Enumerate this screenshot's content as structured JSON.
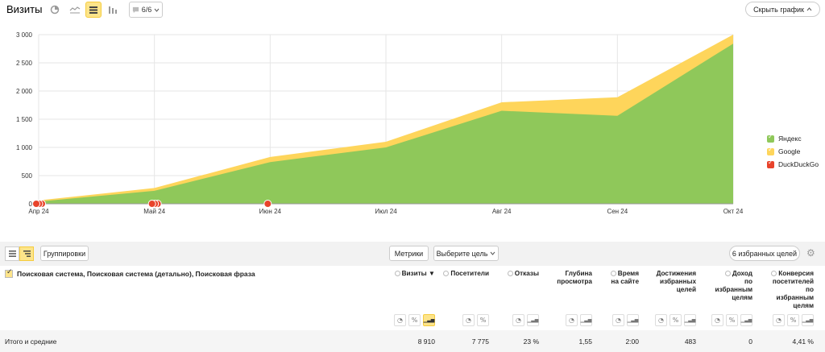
{
  "header": {
    "title": "Визиты",
    "notes_label": "6/6",
    "hide_chart_label": "Скрыть график"
  },
  "colors": {
    "yandex": "#8fc85a",
    "google": "#fed55b",
    "duckduckgo": "#e8432b",
    "accent": "#fde48a"
  },
  "chart_data": {
    "type": "area",
    "stacked": true,
    "x": [
      "Апр 24",
      "Май 24",
      "Июн 24",
      "Июл 24",
      "Авг 24",
      "Сен 24",
      "Окт 24"
    ],
    "series": [
      {
        "name": "Яндекс",
        "values": [
          40,
          230,
          740,
          1000,
          1650,
          1560,
          2840
        ]
      },
      {
        "name": "Google",
        "values": [
          20,
          50,
          90,
          100,
          150,
          330,
          160
        ]
      },
      {
        "name": "DuckDuckGo",
        "values": [
          0,
          0,
          0,
          0,
          0,
          0,
          0
        ]
      }
    ],
    "y_ticks": [
      "3 000",
      "2 500",
      "2 000",
      "1 500",
      "1 000",
      "500",
      "0"
    ],
    "ylim": [
      0,
      3000
    ],
    "grid": true,
    "legend_position": "right"
  },
  "toolbar": {
    "groupings_label": "Группировки",
    "metrics_label": "Метрики",
    "goal_select_label": "Выберите цель",
    "favorite_goals_label": "6 избранных целей"
  },
  "table": {
    "dimensions_header": "Поисковая система, Поисковая система (детально), Поисковая фраза",
    "columns": [
      {
        "label": "Визиты ▼",
        "lines": [
          "Визиты ▼"
        ]
      },
      {
        "label": "Посетители",
        "lines": [
          "Посетители"
        ]
      },
      {
        "label": "Отказы",
        "lines": [
          "Отказы"
        ]
      },
      {
        "label": "Глубина просмотра",
        "lines": [
          "Глубина",
          "просмотра"
        ]
      },
      {
        "label": "Время на сайте",
        "lines": [
          "Время",
          "на сайте"
        ]
      },
      {
        "label": "Достижения избранных целей",
        "lines": [
          "Достижения",
          "избранных",
          "целей"
        ]
      },
      {
        "label": "Доход по избранным целям",
        "lines": [
          "Доход",
          "по",
          "избранным",
          "целям"
        ]
      },
      {
        "label": "Конверсия посетителей по избранным целям",
        "lines": [
          "Конверсия",
          "посетителей",
          "по",
          "избранным",
          "целям"
        ]
      }
    ],
    "totals_label": "Итого и средние",
    "totals": [
      "8 910",
      "7 775",
      "23 %",
      "1,55",
      "2:00",
      "483",
      "0",
      "4,41 %"
    ]
  }
}
